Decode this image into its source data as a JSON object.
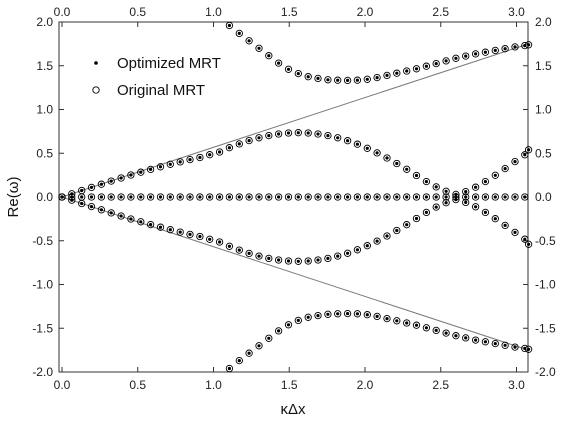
{
  "chart_data": {
    "type": "scatter",
    "title": "",
    "xlabel": "κΔx",
    "ylabel": "Re(ω)",
    "xlim": [
      0.0,
      3.14
    ],
    "ylim": [
      -2.0,
      2.0
    ],
    "x_ticks": [
      "0.0",
      "0.5",
      "1.0",
      "1.5",
      "2.0",
      "2.5",
      "3.0"
    ],
    "y_ticks": [
      "-2.0",
      "-1.5",
      "-1.0",
      "-0.5",
      "0.0",
      "0.5",
      "1.0",
      "1.5",
      "2.0"
    ],
    "secondary_axes": true,
    "legend_position": "top-left",
    "grid": false,
    "series": [
      {
        "name": "Optimized MRT",
        "marker": "small filled dot",
        "color": "#000000",
        "branches": [
          {
            "x": [
              0.0,
              0.065,
              0.13,
              0.195,
              0.26,
              0.325,
              0.39,
              0.455,
              0.52,
              0.585,
              0.65,
              0.715,
              0.78,
              0.845,
              0.91,
              0.975,
              1.04,
              1.105,
              1.17,
              1.235,
              1.3,
              1.365,
              1.43,
              1.495,
              1.56,
              1.625,
              1.69,
              1.755,
              1.82,
              1.885,
              1.95,
              2.015,
              2.08,
              2.145,
              2.21,
              2.275,
              2.34,
              2.405,
              2.47,
              2.535,
              2.6
            ],
            "y": [
              0.0,
              0.037,
              0.074,
              0.11,
              0.146,
              0.182,
              0.217,
              0.251,
              0.284,
              0.315,
              0.345,
              0.374,
              0.401,
              0.427,
              0.451,
              0.484,
              0.514,
              0.563,
              0.607,
              0.645,
              0.676,
              0.702,
              0.72,
              0.731,
              0.735,
              0.731,
              0.72,
              0.702,
              0.676,
              0.643,
              0.603,
              0.557,
              0.504,
              0.446,
              0.383,
              0.316,
              0.246,
              0.176,
              0.115,
              0.065,
              0.03
            ]
          },
          {
            "x": [
              0.0,
              0.065,
              0.13,
              0.195,
              0.26,
              0.325,
              0.39,
              0.455,
              0.52,
              0.585,
              0.65,
              0.715,
              0.78,
              0.845,
              0.91,
              0.975,
              1.04,
              1.105,
              1.17,
              1.235,
              1.3,
              1.365,
              1.43,
              1.495,
              1.56,
              1.625,
              1.69,
              1.755,
              1.82,
              1.885,
              1.95,
              2.015,
              2.08,
              2.145,
              2.21,
              2.275,
              2.34,
              2.405,
              2.47,
              2.535,
              2.6
            ],
            "y": [
              0.0,
              -0.037,
              -0.074,
              -0.11,
              -0.146,
              -0.182,
              -0.217,
              -0.251,
              -0.284,
              -0.315,
              -0.345,
              -0.374,
              -0.401,
              -0.427,
              -0.451,
              -0.484,
              -0.514,
              -0.563,
              -0.607,
              -0.645,
              -0.676,
              -0.702,
              -0.72,
              -0.731,
              -0.735,
              -0.731,
              -0.72,
              -0.702,
              -0.676,
              -0.643,
              -0.603,
              -0.557,
              -0.504,
              -0.446,
              -0.383,
              -0.316,
              -0.246,
              -0.176,
              -0.115,
              -0.065,
              -0.03
            ]
          },
          {
            "x": [
              2.665,
              2.73,
              2.795,
              2.86,
              2.925,
              2.99,
              3.055,
              3.08
            ],
            "y": [
              0.062,
              0.112,
              0.176,
              0.248,
              0.325,
              0.405,
              0.482,
              0.54
            ]
          },
          {
            "x": [
              2.665,
              2.73,
              2.795,
              2.86,
              2.925,
              2.99,
              3.055,
              3.08
            ],
            "y": [
              -0.062,
              -0.112,
              -0.176,
              -0.248,
              -0.325,
              -0.405,
              -0.482,
              -0.54
            ]
          },
          {
            "x": [
              0.0,
              0.065,
              0.13,
              0.195,
              0.26,
              0.325,
              0.39,
              0.455,
              0.52,
              0.585,
              0.65,
              0.715,
              0.78,
              0.845,
              0.91,
              0.975,
              1.04,
              1.105,
              1.17,
              1.235,
              1.3,
              1.365,
              1.43,
              1.495,
              1.56,
              1.625,
              1.69,
              1.755,
              1.82,
              1.885,
              1.95,
              2.015,
              2.08,
              2.145,
              2.21,
              2.275,
              2.34,
              2.405,
              2.47,
              2.535,
              2.6,
              2.665,
              2.73,
              2.795,
              2.86,
              2.925,
              2.99,
              3.055
            ],
            "y": [
              0.0,
              0.0,
              0.0,
              0.0,
              0.0,
              0.0,
              0.0,
              0.0,
              0.0,
              0.0,
              0.0,
              0.0,
              0.0,
              0.0,
              0.0,
              0.0,
              0.0,
              0.0,
              0.0,
              0.0,
              0.0,
              0.0,
              0.0,
              0.0,
              0.0,
              0.0,
              0.0,
              0.0,
              0.0,
              0.0,
              0.0,
              0.0,
              0.0,
              0.0,
              0.0,
              0.0,
              0.0,
              0.0,
              0.0,
              0.0,
              0.0,
              0.0,
              0.0,
              0.0,
              0.0,
              0.0,
              0.0,
              0.0
            ]
          },
          {
            "x": [
              1.105,
              1.17,
              1.235,
              1.3,
              1.365,
              1.43,
              1.495,
              1.56,
              1.625,
              1.69,
              1.755,
              1.82,
              1.885,
              1.95,
              2.015,
              2.08,
              2.145,
              2.21,
              2.275,
              2.34,
              2.405,
              2.47,
              2.535,
              2.6,
              2.665,
              2.73,
              2.795,
              2.86,
              2.925,
              2.99,
              3.055,
              3.08
            ],
            "y": [
              1.96,
              1.87,
              1.785,
              1.7,
              1.615,
              1.53,
              1.46,
              1.41,
              1.375,
              1.355,
              1.34,
              1.335,
              1.333,
              1.335,
              1.345,
              1.365,
              1.39,
              1.415,
              1.44,
              1.465,
              1.495,
              1.525,
              1.555,
              1.585,
              1.61,
              1.635,
              1.655,
              1.675,
              1.695,
              1.715,
              1.73,
              1.74
            ]
          },
          {
            "x": [
              1.105,
              1.17,
              1.235,
              1.3,
              1.365,
              1.43,
              1.495,
              1.56,
              1.625,
              1.69,
              1.755,
              1.82,
              1.885,
              1.95,
              2.015,
              2.08,
              2.145,
              2.21,
              2.275,
              2.34,
              2.405,
              2.47,
              2.535,
              2.6,
              2.665,
              2.73,
              2.795,
              2.86,
              2.925,
              2.99,
              3.055,
              3.08
            ],
            "y": [
              -1.96,
              -1.87,
              -1.785,
              -1.7,
              -1.615,
              -1.53,
              -1.46,
              -1.41,
              -1.375,
              -1.355,
              -1.34,
              -1.335,
              -1.333,
              -1.335,
              -1.345,
              -1.365,
              -1.39,
              -1.415,
              -1.44,
              -1.465,
              -1.495,
              -1.525,
              -1.555,
              -1.585,
              -1.61,
              -1.635,
              -1.655,
              -1.675,
              -1.695,
              -1.715,
              -1.73,
              -1.74
            ]
          }
        ]
      },
      {
        "name": "Original MRT",
        "marker": "open circle",
        "color": "#000000"
      }
    ],
    "reference_lines": [
      {
        "x": [
          0.0,
          3.08
        ],
        "y": [
          0.0,
          1.75
        ],
        "color": "#7a7a7a"
      },
      {
        "x": [
          0.0,
          3.08
        ],
        "y": [
          0.0,
          -1.75
        ],
        "color": "#7a7a7a"
      }
    ]
  }
}
